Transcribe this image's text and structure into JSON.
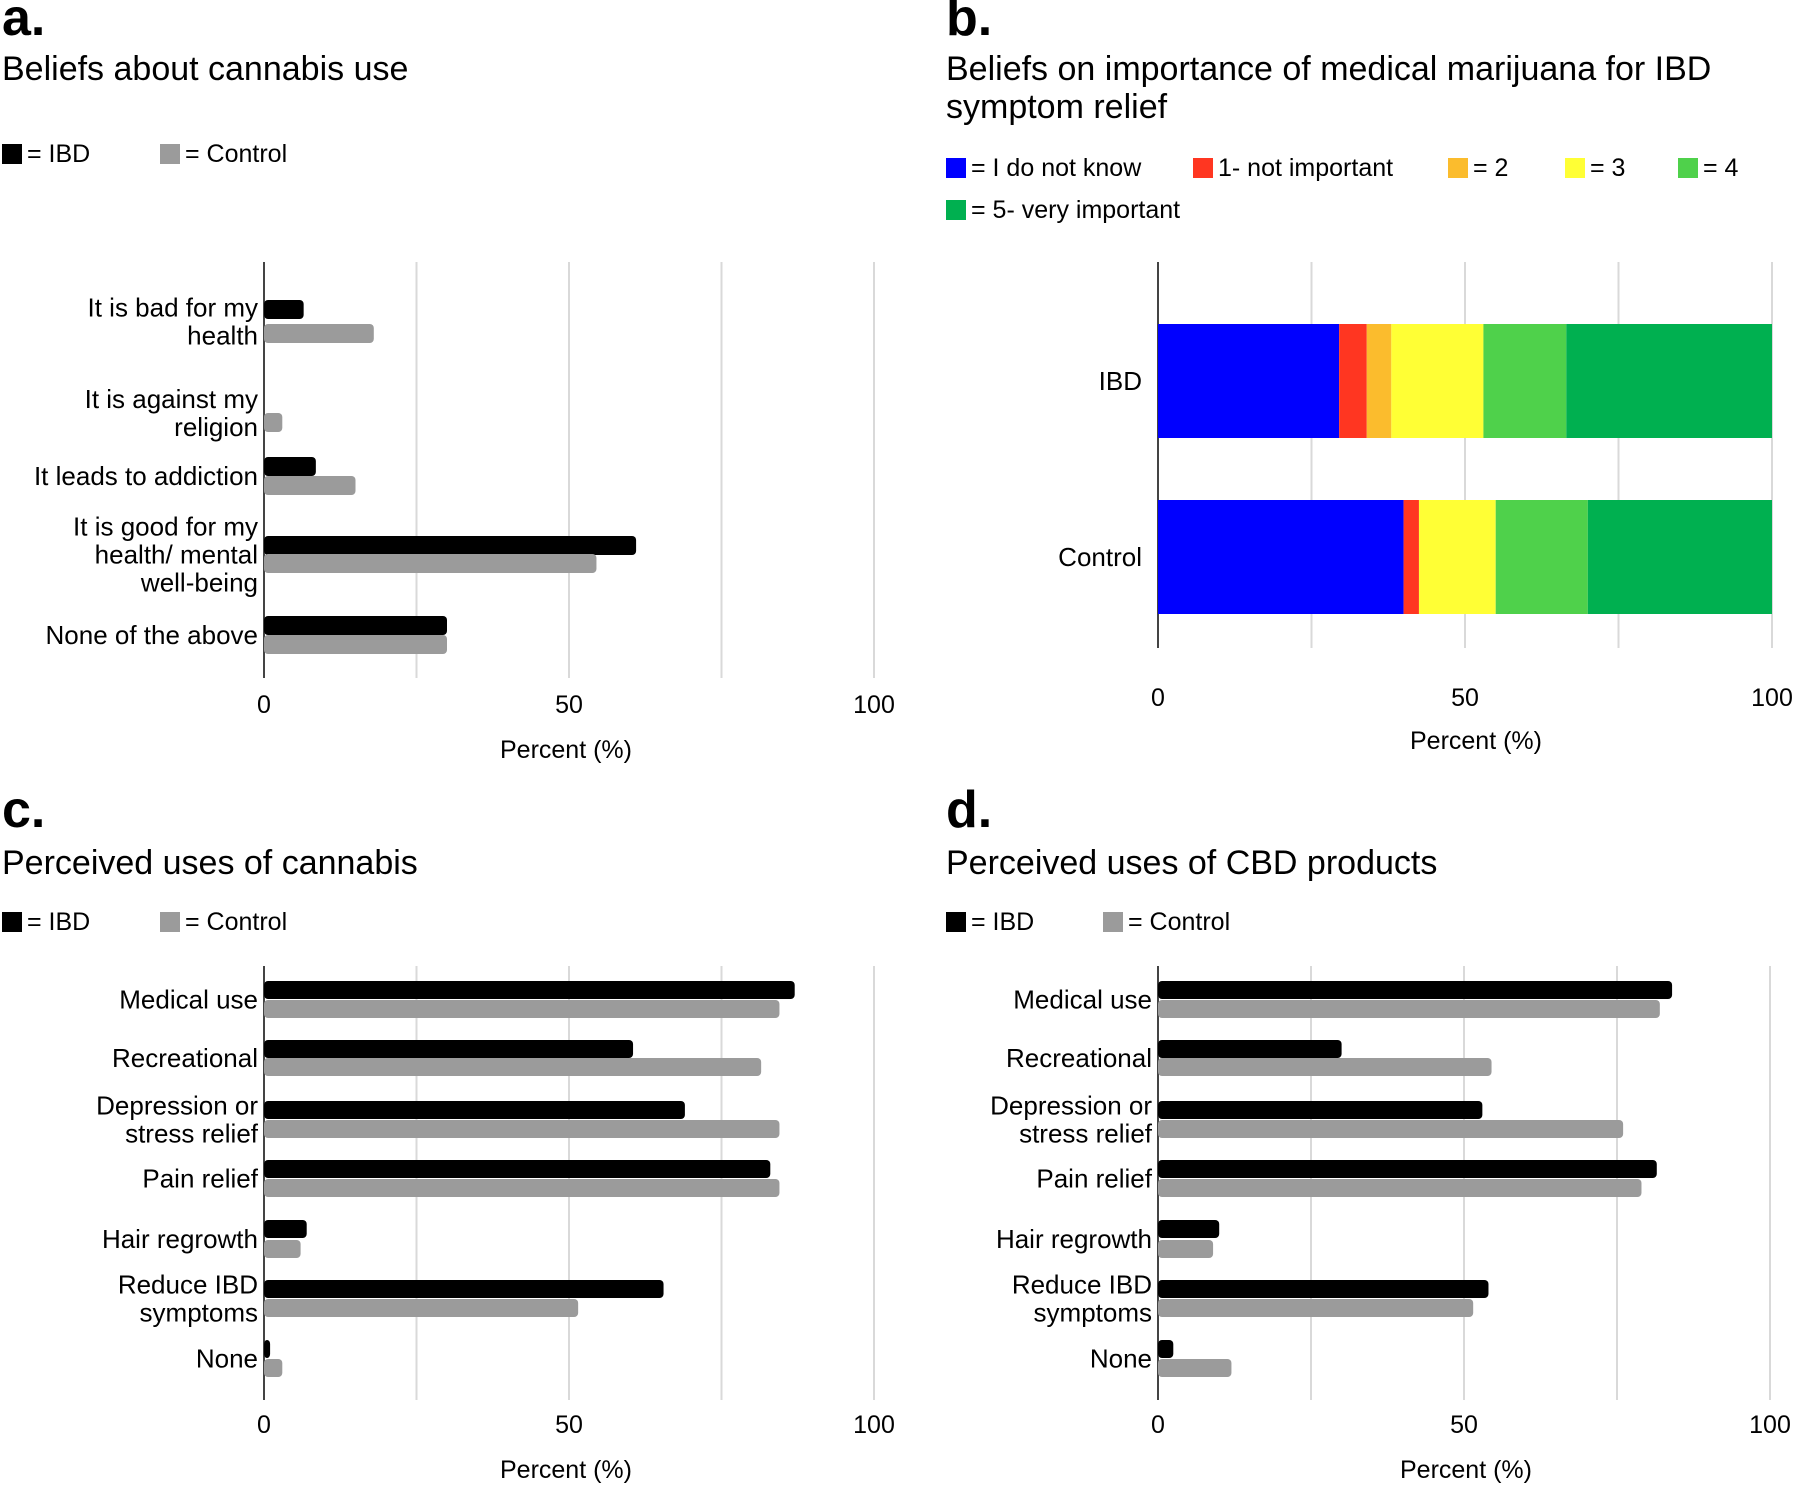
{
  "colors": {
    "ibd": "#000000",
    "control": "#9b9b9b",
    "grid": "#d9d9d9",
    "dont_know": "#0000ff",
    "r1": "#ff3621",
    "r2": "#fbbc2d",
    "r3": "#ffff35",
    "r4": "#4fd14b",
    "r5": "#00b050"
  },
  "chart_data": [
    {
      "id": "a",
      "letter": "a.",
      "type": "bar",
      "orientation": "horizontal",
      "title": "Beliefs about cannabis use",
      "legend": [
        {
          "key": "ibd",
          "label": "= IBD"
        },
        {
          "key": "control",
          "label": "= Control"
        }
      ],
      "categories": [
        [
          "It is bad for my",
          "health"
        ],
        [
          "It is against my",
          "religion"
        ],
        [
          "It leads to addiction"
        ],
        [
          "It is good for my",
          "health/ mental",
          "well-being"
        ],
        [
          "None of the above"
        ]
      ],
      "series": [
        {
          "name": "IBD",
          "key": "ibd",
          "values": [
            6.5,
            0,
            8.5,
            61,
            30
          ]
        },
        {
          "name": "Control",
          "key": "control",
          "values": [
            18,
            3,
            15,
            54.5,
            30
          ]
        }
      ],
      "xlim": [
        0,
        100
      ],
      "xticks": [
        "0",
        "50",
        "100"
      ],
      "xlabel": "Percent (%)",
      "ylabel": ""
    },
    {
      "id": "b",
      "letter": "b.",
      "type": "stacked-bar",
      "orientation": "horizontal",
      "title": [
        "Beliefs on importance of medical marijuana for IBD",
        "symptom relief"
      ],
      "legend": [
        {
          "key": "dont_know",
          "label": "= I do not know"
        },
        {
          "key": "r1",
          "label": "1- not important"
        },
        {
          "key": "r2",
          "label": "= 2"
        },
        {
          "key": "r3",
          "label": "= 3"
        },
        {
          "key": "r4",
          "label": "= 4"
        },
        {
          "key": "r5",
          "label": "= 5- very important"
        }
      ],
      "categories": [
        "IBD",
        "Control"
      ],
      "series": [
        {
          "name": "I do not know",
          "key": "dont_know",
          "values": [
            29.5,
            40
          ]
        },
        {
          "name": "1- not important",
          "key": "r1",
          "values": [
            4.5,
            2.5
          ]
        },
        {
          "name": "2",
          "key": "r2",
          "values": [
            4,
            0
          ]
        },
        {
          "name": "3",
          "key": "r3",
          "values": [
            15,
            12.5
          ]
        },
        {
          "name": "4",
          "key": "r4",
          "values": [
            13.5,
            15
          ]
        },
        {
          "name": "5- very important",
          "key": "r5",
          "values": [
            33.5,
            30
          ]
        }
      ],
      "xlim": [
        0,
        100
      ],
      "xticks": [
        "0",
        "50",
        "100"
      ],
      "xlabel": "Percent (%)",
      "ylabel": ""
    },
    {
      "id": "c",
      "letter": "c.",
      "type": "bar",
      "orientation": "horizontal",
      "title": "Perceived uses of cannabis",
      "legend": [
        {
          "key": "ibd",
          "label": "= IBD"
        },
        {
          "key": "control",
          "label": "= Control"
        }
      ],
      "categories": [
        [
          "Medical use"
        ],
        [
          "Recreational"
        ],
        [
          "Depression or",
          "stress relief"
        ],
        [
          "Pain relief"
        ],
        [
          "Hair regrowth"
        ],
        [
          "Reduce IBD",
          "symptoms"
        ],
        [
          "None"
        ]
      ],
      "series": [
        {
          "name": "IBD",
          "key": "ibd",
          "values": [
            87,
            60.5,
            69,
            83,
            7,
            65.5,
            1
          ]
        },
        {
          "name": "Control",
          "key": "control",
          "values": [
            84.5,
            81.5,
            84.5,
            84.5,
            6,
            51.5,
            3
          ]
        }
      ],
      "xlim": [
        0,
        100
      ],
      "xticks": [
        "0",
        "50",
        "100"
      ],
      "xlabel": "Percent (%)",
      "ylabel": ""
    },
    {
      "id": "d",
      "letter": "d.",
      "type": "bar",
      "orientation": "horizontal",
      "title": "Perceived uses of CBD products",
      "legend": [
        {
          "key": "ibd",
          "label": "= IBD"
        },
        {
          "key": "control",
          "label": "= Control"
        }
      ],
      "categories": [
        [
          "Medical use"
        ],
        [
          "Recreational"
        ],
        [
          "Depression or",
          "stress relief"
        ],
        [
          "Pain relief"
        ],
        [
          "Hair regrowth"
        ],
        [
          "Reduce IBD",
          "symptoms"
        ],
        [
          "None"
        ]
      ],
      "series": [
        {
          "name": "IBD",
          "key": "ibd",
          "values": [
            84,
            30,
            53,
            81.5,
            10,
            54,
            2.5
          ]
        },
        {
          "name": "Control",
          "key": "control",
          "values": [
            82,
            54.5,
            76,
            79,
            9,
            51.5,
            12
          ]
        }
      ],
      "xlim": [
        0,
        100
      ],
      "xticks": [
        "0",
        "50",
        "100"
      ],
      "xlabel": "Percent (%)",
      "ylabel": ""
    }
  ]
}
